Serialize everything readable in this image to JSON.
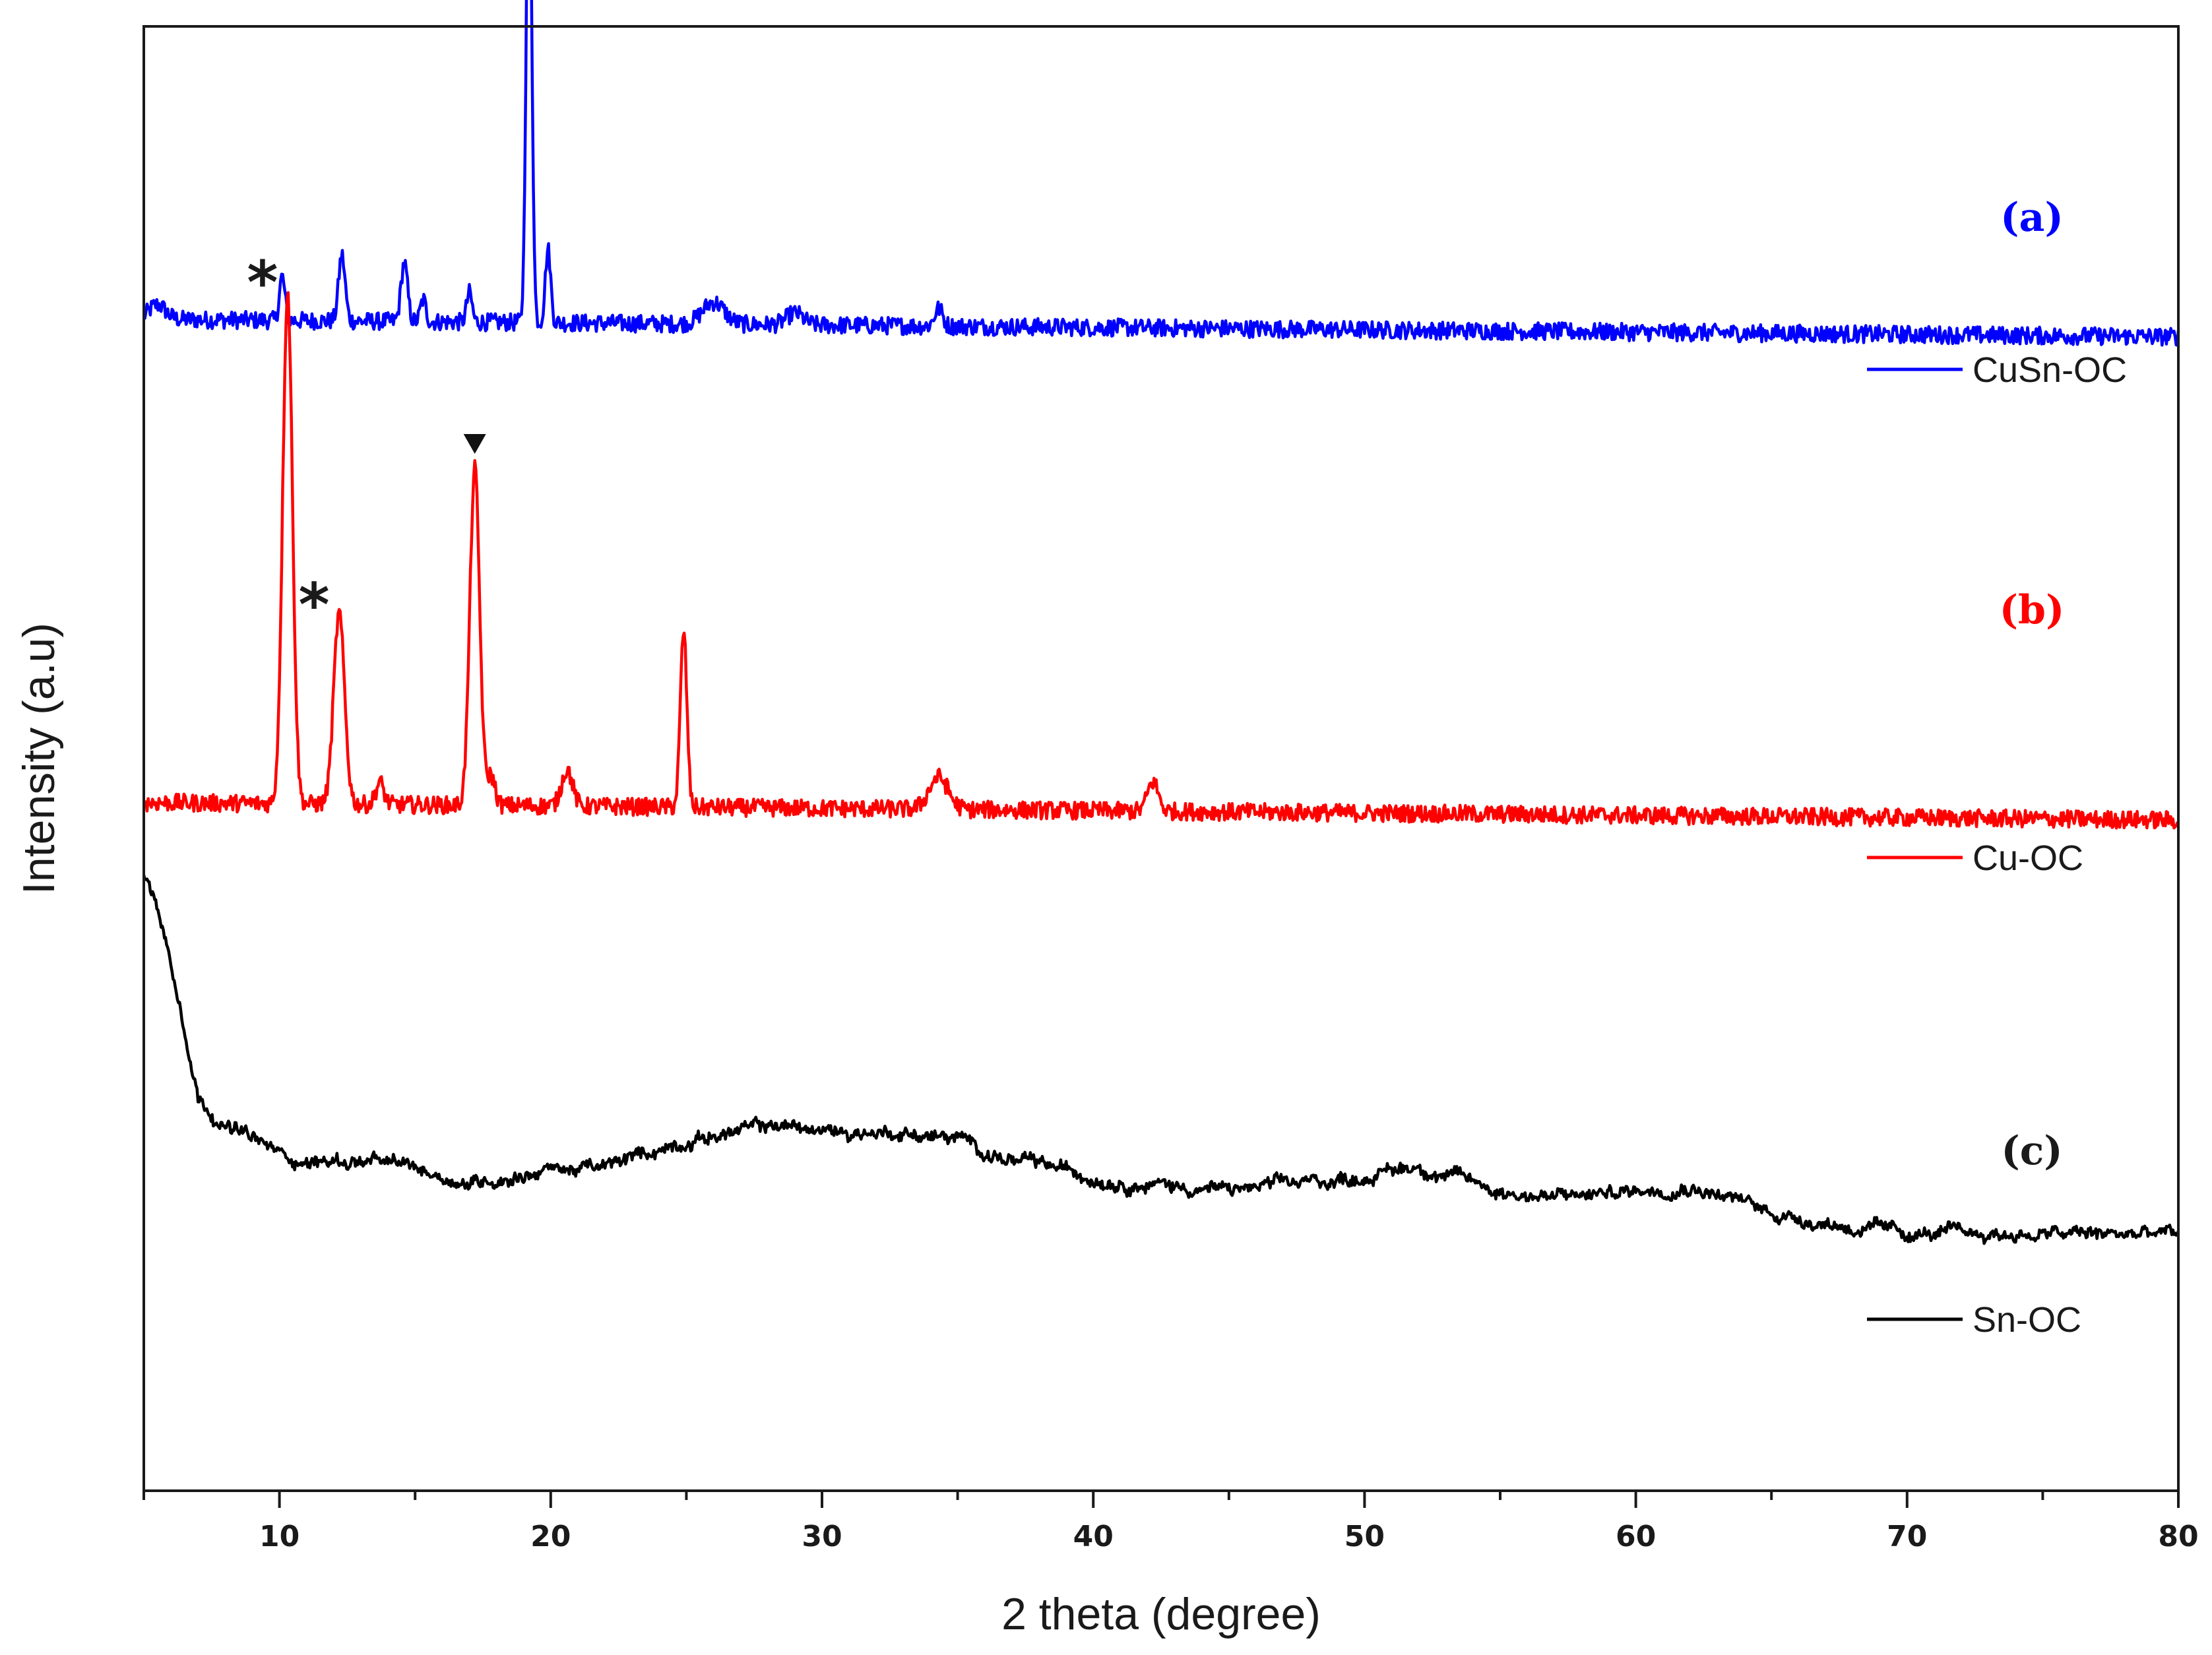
{
  "chart_data": {
    "type": "line",
    "xlabel": "2 theta (degree)",
    "ylabel": "Intensity (a.u)",
    "xlim": [
      5,
      80
    ],
    "x_ticks": [
      10,
      20,
      30,
      40,
      50,
      60,
      70,
      80
    ],
    "y_ticks": "none",
    "grid": false,
    "legend_placement": "right, beside each trace",
    "series": [
      {
        "name": "CuSn-OC",
        "panel": "(a)",
        "color": "#0000ff",
        "baseline": 0.8,
        "peaks": [
          {
            "x": 5.5,
            "h": 0.01,
            "w": 0.3
          },
          {
            "x": 10.1,
            "h": 0.03,
            "w": 0.1
          },
          {
            "x": 12.3,
            "h": 0.045,
            "w": 0.12
          },
          {
            "x": 14.6,
            "h": 0.04,
            "w": 0.12
          },
          {
            "x": 15.3,
            "h": 0.015,
            "w": 0.1
          },
          {
            "x": 17.0,
            "h": 0.02,
            "w": 0.1
          },
          {
            "x": 19.2,
            "h": 0.35,
            "w": 0.1
          },
          {
            "x": 19.9,
            "h": 0.05,
            "w": 0.1
          },
          {
            "x": 26.0,
            "h": 0.015,
            "w": 0.4
          },
          {
            "x": 29.0,
            "h": 0.008,
            "w": 0.3
          },
          {
            "x": 34.3,
            "h": 0.012,
            "w": 0.15
          }
        ],
        "markers": [
          {
            "x": 19.2,
            "symbol": "▼"
          }
        ]
      },
      {
        "name": "Cu-OC",
        "panel": "(b)",
        "color": "#ff0000",
        "baseline": 0.47,
        "peaks": [
          {
            "x": 10.3,
            "h": 0.35,
            "w": 0.18
          },
          {
            "x": 12.2,
            "h": 0.13,
            "w": 0.2
          },
          {
            "x": 13.7,
            "h": 0.015,
            "w": 0.15
          },
          {
            "x": 17.2,
            "h": 0.23,
            "w": 0.18
          },
          {
            "x": 17.8,
            "h": 0.02,
            "w": 0.15
          },
          {
            "x": 20.6,
            "h": 0.025,
            "w": 0.2
          },
          {
            "x": 24.9,
            "h": 0.12,
            "w": 0.12
          },
          {
            "x": 34.3,
            "h": 0.022,
            "w": 0.35
          },
          {
            "x": 42.2,
            "h": 0.02,
            "w": 0.2
          }
        ],
        "markers": [
          {
            "x": 10.3,
            "symbol": "*"
          },
          {
            "x": 12.2,
            "symbol": "*"
          },
          {
            "x": 17.2,
            "symbol": "▼"
          }
        ]
      },
      {
        "name": "Sn-OC",
        "panel": "(c)",
        "color": "#000000",
        "description": "amorphous",
        "profile": [
          [
            5.0,
            0.42
          ],
          [
            5.5,
            0.4
          ],
          [
            6.0,
            0.36
          ],
          [
            6.5,
            0.32
          ],
          [
            7.0,
            0.27
          ],
          [
            8.0,
            0.25
          ],
          [
            9.0,
            0.24
          ],
          [
            10.0,
            0.23
          ],
          [
            11.0,
            0.225
          ],
          [
            13.0,
            0.225
          ],
          [
            15.0,
            0.22
          ],
          [
            17.0,
            0.21
          ],
          [
            20.0,
            0.22
          ],
          [
            22.0,
            0.22
          ],
          [
            25.0,
            0.24
          ],
          [
            28.5,
            0.25
          ],
          [
            30.0,
            0.245
          ],
          [
            33.0,
            0.245
          ],
          [
            35.0,
            0.24
          ],
          [
            37.0,
            0.225
          ],
          [
            40.0,
            0.215
          ],
          [
            42.0,
            0.21
          ],
          [
            45.0,
            0.205
          ],
          [
            48.0,
            0.21
          ],
          [
            50.0,
            0.215
          ],
          [
            52.0,
            0.222
          ],
          [
            55.0,
            0.205
          ],
          [
            57.0,
            0.2
          ],
          [
            60.0,
            0.205
          ],
          [
            62.0,
            0.21
          ],
          [
            65.0,
            0.19
          ],
          [
            68.0,
            0.18
          ],
          [
            70.0,
            0.175
          ],
          [
            73.0,
            0.175
          ],
          [
            75.0,
            0.175
          ],
          [
            78.0,
            0.175
          ],
          [
            80.0,
            0.175
          ]
        ],
        "markers": []
      }
    ]
  }
}
